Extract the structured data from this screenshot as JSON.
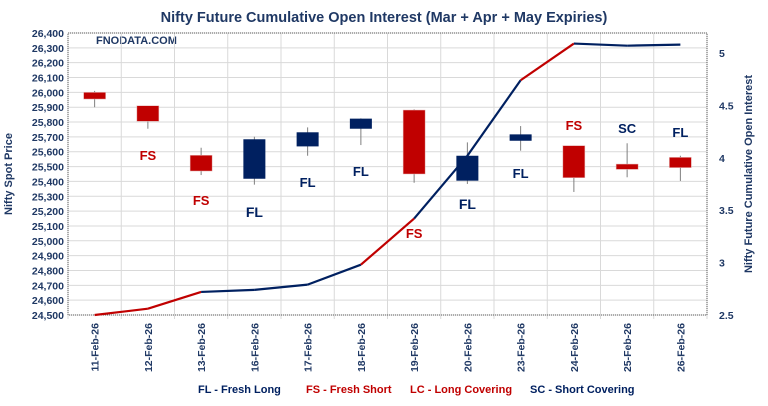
{
  "chart_data": {
    "type": "candlestick+line",
    "title": "Nifty Future Cumulative Open Interest (Mar + Apr + May Expiries)",
    "watermark": "FNODATA.COM",
    "ylabel": "Nifty Spot Price",
    "y2label": "Nifty Future Cumulative Open Interest",
    "ylim": [
      24500,
      26400
    ],
    "y_ticks": [
      "24,500",
      "24,600",
      "24,700",
      "24,800",
      "24,900",
      "25,000",
      "25,100",
      "25,200",
      "25,300",
      "25,400",
      "25,500",
      "25,600",
      "25,700",
      "25,800",
      "25,900",
      "26,000",
      "26,100",
      "26,200",
      "26,300",
      "26,400"
    ],
    "y2lim": [
      2.5,
      5.2
    ],
    "y2_ticks": [
      "2.5",
      "3",
      "3.5",
      "4",
      "4.5",
      "5"
    ],
    "grid": true,
    "categories": [
      "11-Feb-26",
      "12-Feb-26",
      "13-Feb-26",
      "16-Feb-26",
      "17-Feb-26",
      "18-Feb-26",
      "19-Feb-26",
      "20-Feb-26",
      "23-Feb-26",
      "24-Feb-26",
      "25-Feb-26",
      "26-Feb-26"
    ],
    "ohlc": [
      {
        "open": 26000,
        "high": 26010,
        "low": 25900,
        "close": 25955
      },
      {
        "open": 25910,
        "high": 25910,
        "low": 25755,
        "close": 25805
      },
      {
        "open": 25576,
        "high": 25627,
        "low": 25443,
        "close": 25470
      },
      {
        "open": 25418,
        "high": 25701,
        "low": 25378,
        "close": 25684
      },
      {
        "open": 25636,
        "high": 25764,
        "low": 25573,
        "close": 25731
      },
      {
        "open": 25755,
        "high": 25825,
        "low": 25645,
        "close": 25823
      },
      {
        "open": 25881,
        "high": 25886,
        "low": 25391,
        "close": 25450
      },
      {
        "open": 25405,
        "high": 25663,
        "low": 25383,
        "close": 25573
      },
      {
        "open": 25674,
        "high": 25773,
        "low": 25607,
        "close": 25717
      },
      {
        "open": 25641,
        "high": 25641,
        "low": 25329,
        "close": 25425
      },
      {
        "open": 25517,
        "high": 25657,
        "low": 25428,
        "close": 25481
      },
      {
        "open": 25562,
        "high": 25573,
        "low": 25403,
        "close": 25493
      }
    ],
    "open_interest": [
      2.5,
      2.56,
      2.72,
      2.74,
      2.79,
      2.98,
      3.42,
      4.02,
      4.74,
      5.09,
      5.07,
      5.08
    ],
    "oi_segment_colors": [
      "#c00000",
      "#c00000",
      "#002060",
      "#002060",
      "#002060",
      "#c00000",
      "#002060",
      "#002060",
      "#c00000",
      "#002060",
      "#002060"
    ],
    "annotations": [
      "",
      "FS",
      "FS",
      "FL",
      "FL",
      "FL",
      "FS",
      "FL",
      "FL",
      "FS",
      "SC",
      "FL"
    ],
    "legend": [
      {
        "text": "FL - Fresh Long",
        "color": "#002060"
      },
      {
        "text": "FS - Fresh Short",
        "color": "#c00000"
      },
      {
        "text": "LC - Long Covering",
        "color": "#c00000"
      },
      {
        "text": "SC - Short Covering",
        "color": "#002060"
      }
    ],
    "colors": {
      "up": "#002060",
      "down": "#c00000",
      "text": "#1f3864"
    }
  }
}
